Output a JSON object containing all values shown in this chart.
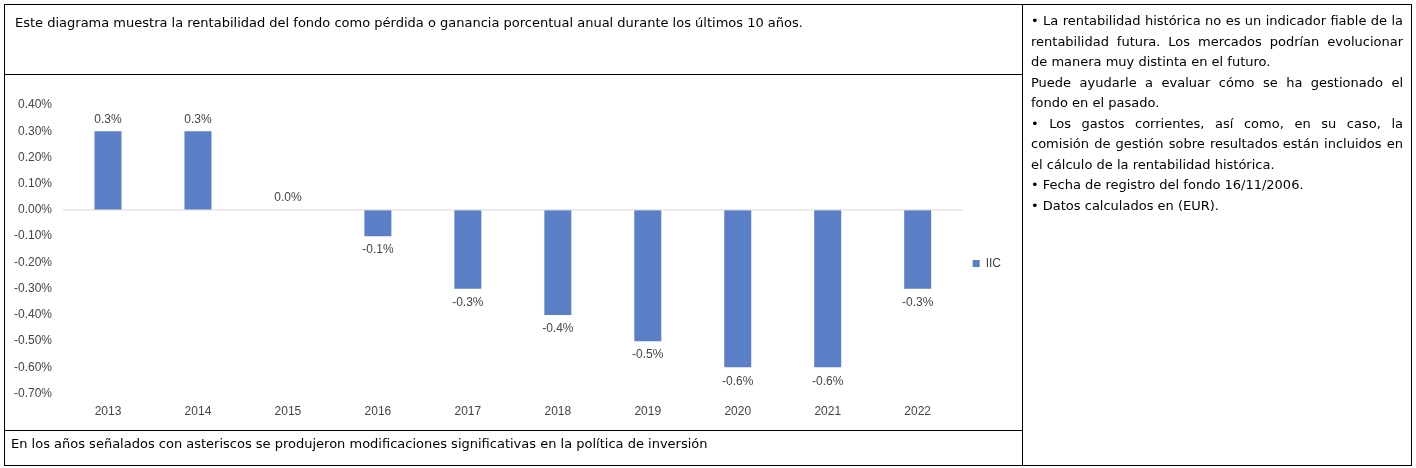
{
  "chart_data": {
    "type": "bar",
    "title": "Este diagrama muestra la rentabilidad del fondo como pérdida o ganancia porcentual anual durante los últimos 10 años.",
    "categories": [
      "2013",
      "2014",
      "2015",
      "2016",
      "2017",
      "2018",
      "2019",
      "2020",
      "2021",
      "2022"
    ],
    "series": [
      {
        "name": "IIC",
        "color": "#5b7fc7",
        "values": [
          0.3,
          0.3,
          0.0,
          -0.1,
          -0.3,
          -0.4,
          -0.5,
          -0.6,
          -0.6,
          -0.3
        ],
        "value_labels": [
          "0.3%",
          "0.3%",
          "0.0%",
          "-0.1%",
          "-0.3%",
          "-0.4%",
          "-0.5%",
          "-0.6%",
          "-0.6%",
          "-0.3%"
        ]
      }
    ],
    "ylim": [
      -0.7,
      0.4
    ],
    "yticks": [
      {
        "value": 0.4,
        "label": "0.40%"
      },
      {
        "value": 0.3,
        "label": "0.30%"
      },
      {
        "value": 0.2,
        "label": "0.20%"
      },
      {
        "value": 0.1,
        "label": "0.10%"
      },
      {
        "value": 0,
        "label": "0.00%"
      },
      {
        "value": -0.1,
        "label": "-0.10%"
      },
      {
        "value": -0.2,
        "label": "-0.20%"
      },
      {
        "value": -0.3,
        "label": "-0.30%"
      },
      {
        "value": -0.4,
        "label": "-0.40%"
      },
      {
        "value": -0.5,
        "label": "-0.50%"
      },
      {
        "value": -0.6,
        "label": "-0.60%"
      },
      {
        "value": -0.7,
        "label": "-0.70%"
      }
    ],
    "legend": "right",
    "annotations": [
      "En los años señalados con asteriscos se produjeron modificaciones significativas en la política de inversión",
      "• La rentabilidad histórica no es un indicador fiable de la rentabilidad futura. Los mercados podrían evolucionar de manera muy distinta en el futuro.",
      "Puede ayudarle a evaluar cómo se ha gestionado el fondo en el pasado.",
      "• Los gastos corrientes, así como, en su caso, la comisión de gestión sobre resultados están incluidos en el cálculo de la rentabilidad histórica.",
      "• Fecha de registro del fondo 16/11/2006.",
      "• Datos calculados en (EUR)."
    ]
  }
}
